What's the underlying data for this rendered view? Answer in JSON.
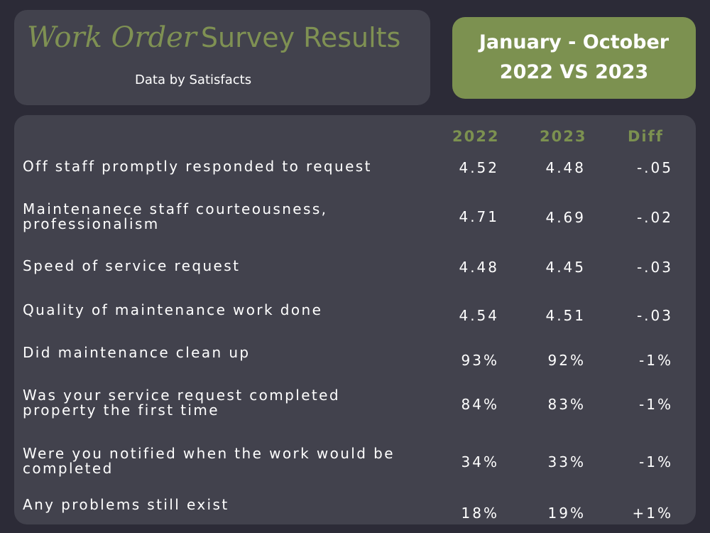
{
  "header": {
    "title_script": "Work Order",
    "title_main": "Survey Results",
    "subtitle": "Data by Satisfacts"
  },
  "period": {
    "line1": "January - October",
    "line2": "2022 VS 2023"
  },
  "table": {
    "columns": [
      "2022",
      "2023",
      "Diff"
    ],
    "rows": [
      {
        "label": "Off staff promptly responded to request",
        "v2022": "4.52",
        "v2023": "4.48",
        "diff": "-.05"
      },
      {
        "label": "Maintenanece staff courteousness, professionalism",
        "v2022": "4.71",
        "v2023": "4.69",
        "diff": "-.02"
      },
      {
        "label": "Speed of service request",
        "v2022": "4.48",
        "v2023": "4.45",
        "diff": "-.03"
      },
      {
        "label": "Quality of maintenance work done",
        "v2022": "4.54",
        "v2023": "4.51",
        "diff": "-.03"
      },
      {
        "label": "Did maintenance clean up",
        "v2022": "93%",
        "v2023": "92%",
        "diff": "-1%"
      },
      {
        "label": "Was your service request completed property the first time",
        "v2022": "84%",
        "v2023": "83%",
        "diff": "-1%"
      },
      {
        "label": "Were you notified when the work would be completed",
        "v2022": "34%",
        "v2023": "33%",
        "diff": "-1%"
      },
      {
        "label": "Any problems still exist",
        "v2022": "18%",
        "v2023": "19%",
        "diff": "+1%"
      }
    ]
  },
  "colors": {
    "background": "#2c2b37",
    "panel": "#42424d",
    "accent": "#7c9150",
    "text": "#ffffff"
  }
}
